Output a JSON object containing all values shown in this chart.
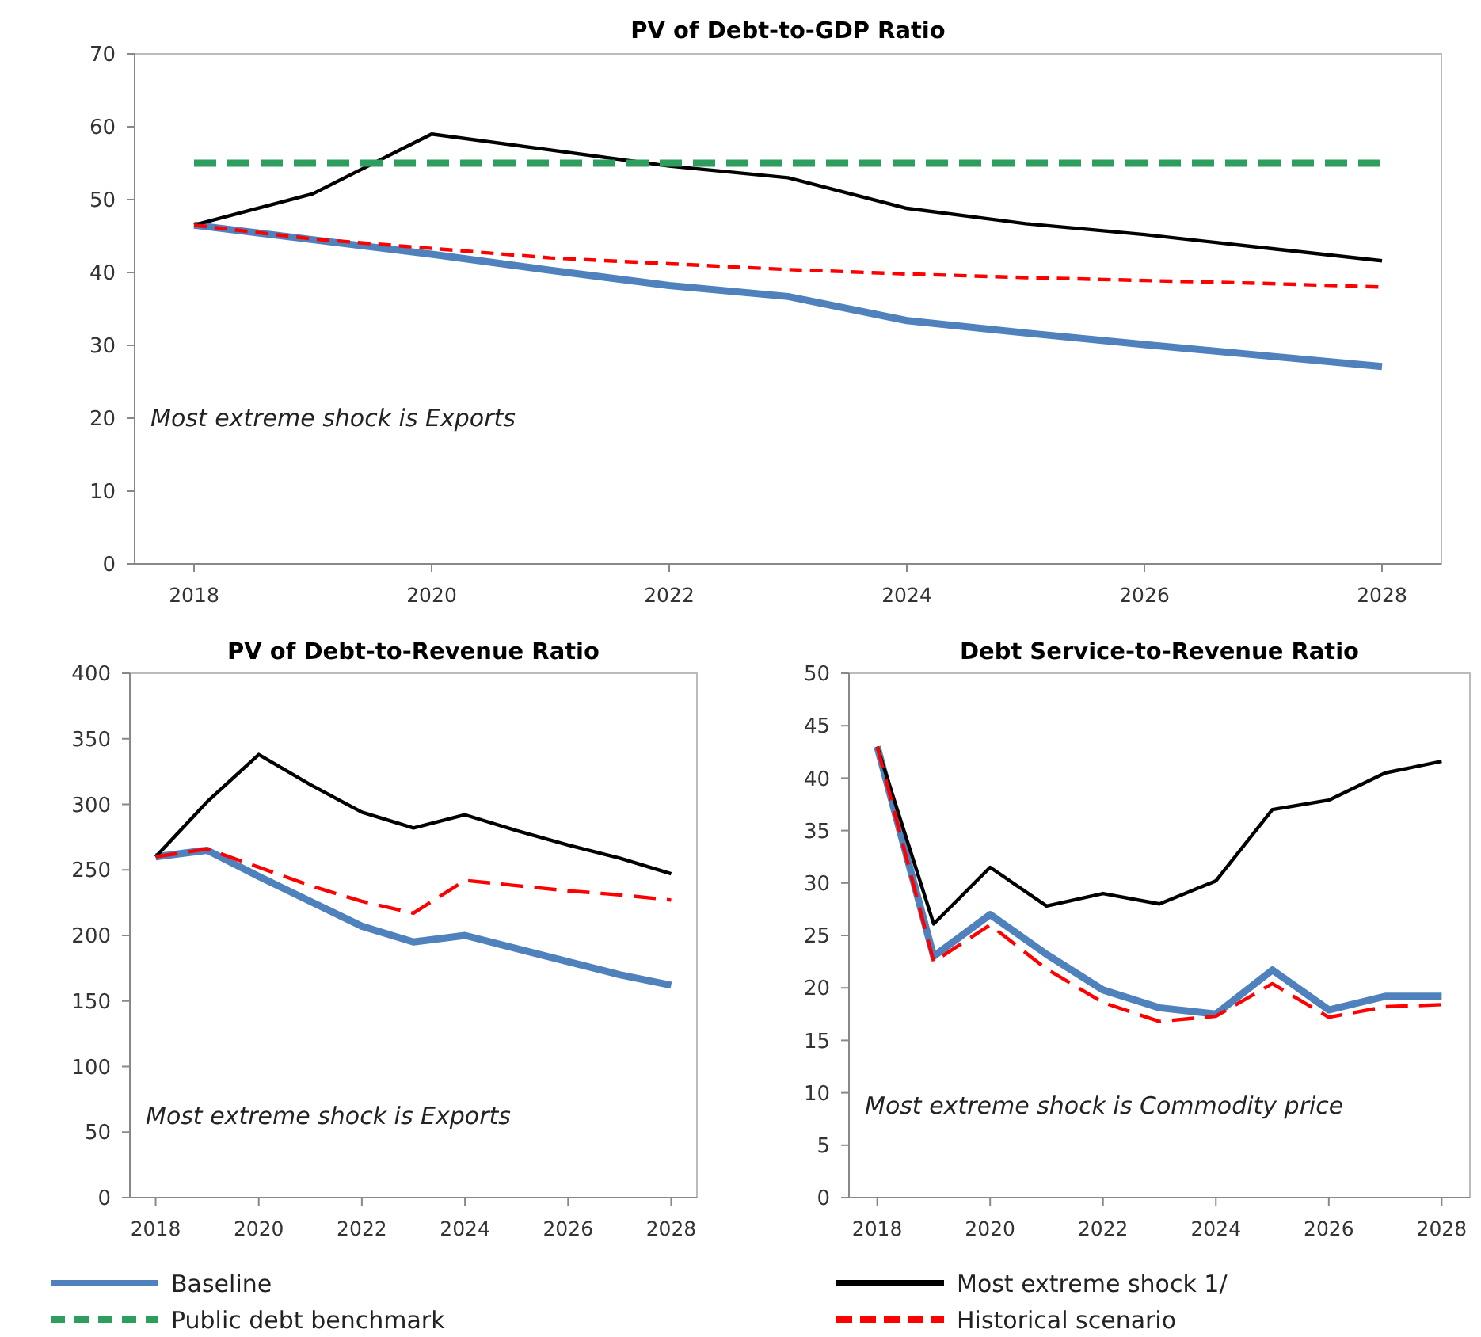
{
  "chart_data": [
    {
      "type": "line",
      "title": "PV of Debt-to-GDP  Ratio",
      "x": [
        2018,
        2019,
        2020,
        2021,
        2022,
        2023,
        2024,
        2025,
        2026,
        2027,
        2028
      ],
      "xlim": [
        2017.5,
        2028.5
      ],
      "xticks": [
        2018,
        2020,
        2022,
        2024,
        2026,
        2028
      ],
      "ylim": [
        0,
        70
      ],
      "yticks": [
        0,
        10,
        20,
        30,
        40,
        50,
        60,
        70
      ],
      "grid": false,
      "legend": "bottom",
      "annotations": [
        "Most extreme shock is Exports"
      ],
      "series": [
        {
          "name": "Baseline",
          "color": "#4f81bd",
          "line_style": "solid",
          "values": [
            46.5,
            44.5,
            42.5,
            40.3,
            38.2,
            36.7,
            33.4,
            31.7,
            30.1,
            28.6,
            27.1
          ]
        },
        {
          "name": "Most extreme shock 1/",
          "color": "#000000",
          "line_style": "solid",
          "values": [
            46.5,
            50.8,
            59,
            56.8,
            54.6,
            53,
            48.8,
            46.7,
            45.2,
            43.4,
            41.6
          ]
        },
        {
          "name": "Public debt benchmark",
          "color": "#2e9e5e",
          "line_style": "dashed",
          "values": [
            55,
            55,
            55,
            55,
            55,
            55,
            55,
            55,
            55,
            55,
            55
          ]
        },
        {
          "name": "Historical scenario",
          "color": "#ff0000",
          "line_style": "dashed",
          "values": [
            46.5,
            44.6,
            43.3,
            42.0,
            41.2,
            40.4,
            39.8,
            39.3,
            38.9,
            38.5,
            38.0
          ]
        }
      ]
    },
    {
      "type": "line",
      "title": "PV of Debt-to-Revenue  Ratio",
      "x": [
        2018,
        2019,
        2020,
        2021,
        2022,
        2023,
        2024,
        2025,
        2026,
        2027,
        2028
      ],
      "xlim": [
        2017.5,
        2028.5
      ],
      "xticks": [
        2018,
        2020,
        2022,
        2024,
        2026,
        2028
      ],
      "ylim": [
        0,
        400
      ],
      "yticks": [
        0,
        50,
        100,
        150,
        200,
        250,
        300,
        350,
        400
      ],
      "grid": false,
      "annotations": [
        "Most extreme shock is Exports"
      ],
      "series": [
        {
          "color": "#4f81bd",
          "line_style": "solid",
          "values": [
            260,
            265,
            245,
            226,
            207,
            195,
            200,
            190,
            180,
            170,
            162
          ]
        },
        {
          "color": "#000000",
          "line_style": "solid",
          "values": [
            260,
            302,
            338,
            315,
            294,
            282,
            292,
            280,
            269,
            259,
            247
          ]
        },
        {
          "color": "#ff0000",
          "line_style": "dashed",
          "values": [
            260,
            266,
            252,
            238,
            226,
            217,
            242,
            238,
            234,
            231,
            227
          ]
        }
      ]
    },
    {
      "type": "line",
      "title": "Debt Service-to-Revenue  Ratio",
      "x": [
        2018,
        2019,
        2020,
        2021,
        2022,
        2023,
        2024,
        2025,
        2026,
        2027,
        2028
      ],
      "xlim": [
        2017.5,
        2028.5
      ],
      "xticks": [
        2018,
        2020,
        2022,
        2024,
        2026,
        2028
      ],
      "ylim": [
        0,
        50
      ],
      "yticks": [
        0,
        5,
        10,
        15,
        20,
        25,
        30,
        35,
        40,
        45,
        50
      ],
      "grid": false,
      "annotations": [
        "Most extreme shock is Commodity  price"
      ],
      "series": [
        {
          "color": "#4f81bd",
          "line_style": "solid",
          "values": [
            43,
            23,
            27,
            23.2,
            19.8,
            18.1,
            17.5,
            21.7,
            17.9,
            19.2,
            19.2
          ]
        },
        {
          "color": "#000000",
          "line_style": "solid",
          "values": [
            43,
            26.1,
            31.5,
            27.8,
            29,
            28,
            30.2,
            37,
            37.9,
            40.5,
            41.6
          ]
        },
        {
          "color": "#ff0000",
          "line_style": "dashed",
          "values": [
            43,
            22.5,
            26,
            21.8,
            18.6,
            16.8,
            17.3,
            20.4,
            17.2,
            18.2,
            18.4
          ]
        }
      ]
    }
  ]
}
